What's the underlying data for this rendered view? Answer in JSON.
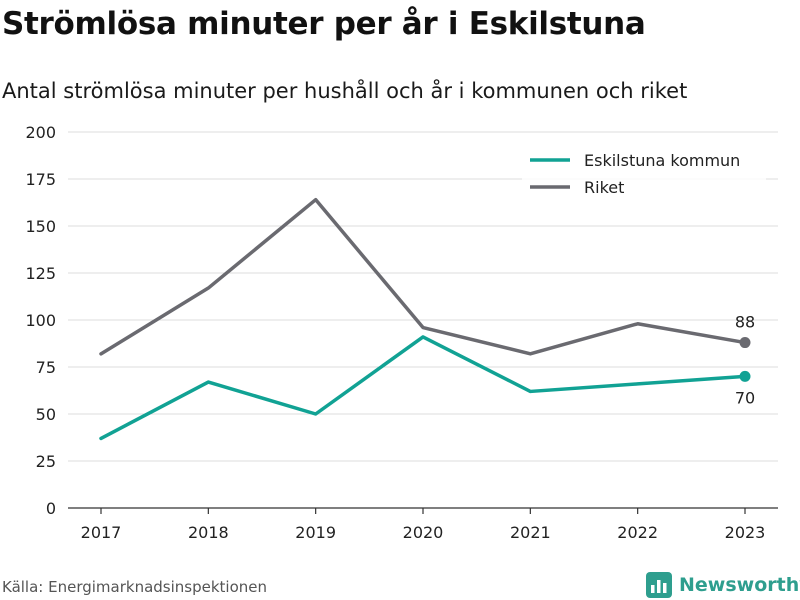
{
  "title": "Strömlösa minuter per år i Eskilstuna",
  "subtitle": "Antal strömlösa minuter per hushåll och år i kommunen och riket",
  "source": "Källa: Energimarknadsinspektionen",
  "brand": "Newsworthy",
  "colors": {
    "eskilstuna": "#11a294",
    "riket": "#6a6a70",
    "grid": "#dcdcdc",
    "axis": "#333333",
    "brand": "#2e9e8e"
  },
  "chart_data": {
    "type": "line",
    "title": "Strömlösa minuter per år i Eskilstuna",
    "subtitle": "Antal strömlösa minuter per hushåll och år i kommunen och riket",
    "x": [
      "2017",
      "2018",
      "2019",
      "2020",
      "2021",
      "2022",
      "2023"
    ],
    "yticks": [
      "0",
      "25",
      "50",
      "75",
      "100",
      "125",
      "150",
      "175",
      "200"
    ],
    "ylim": [
      0,
      200
    ],
    "grid": true,
    "legend_position": "top-right",
    "series": [
      {
        "name": "Eskilstuna kommun",
        "color": "#11a294",
        "values": [
          37,
          67,
          50,
          91,
          62,
          66,
          70
        ],
        "end_label": "70"
      },
      {
        "name": "Riket",
        "color": "#6a6a70",
        "values": [
          82,
          117,
          164,
          96,
          82,
          98,
          88
        ],
        "end_label": "88"
      }
    ]
  }
}
